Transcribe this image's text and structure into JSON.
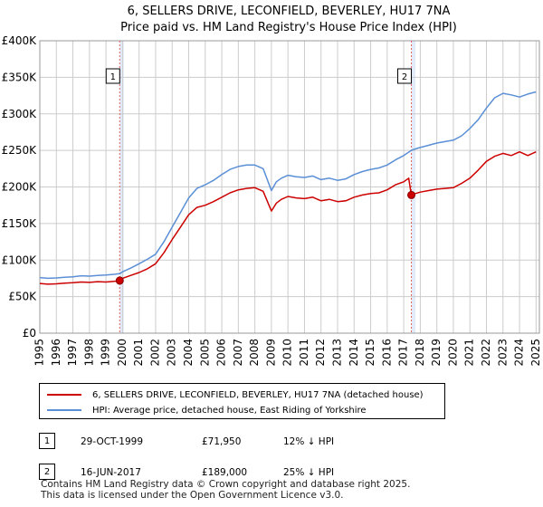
{
  "chart_data": {
    "type": "line",
    "title": "6, SELLERS DRIVE, LECONFIELD, BEVERLEY, HU17 7NA",
    "subtitle": "Price paid vs. HM Land Registry's House Price Index (HPI)",
    "x_range": [
      1995,
      2025.2
    ],
    "ylim": [
      0,
      400000
    ],
    "y_ticks": [
      0,
      50000,
      100000,
      150000,
      200000,
      250000,
      300000,
      350000,
      400000
    ],
    "y_tick_labels": [
      "£0",
      "£50K",
      "£100K",
      "£150K",
      "£200K",
      "£250K",
      "£300K",
      "£350K",
      "£400K"
    ],
    "x_ticks": [
      "1995",
      "1996",
      "1997",
      "1998",
      "1999",
      "2000",
      "2001",
      "2002",
      "2003",
      "2004",
      "2005",
      "2006",
      "2007",
      "2008",
      "2009",
      "2010",
      "2011",
      "2012",
      "2013",
      "2014",
      "2015",
      "2016",
      "2017",
      "2018",
      "2019",
      "2020",
      "2021",
      "2022",
      "2023",
      "2024",
      "2025"
    ],
    "grid": true,
    "colors": {
      "property": "#cc0000",
      "hpi": "#5b8fd6",
      "marker_line": "#e06060",
      "shade": "#dbe6f7"
    },
    "series": [
      {
        "name": "6, SELLERS DRIVE, LECONFIELD, BEVERLEY, HU17 7NA (detached house)",
        "x": [
          1995,
          1995.5,
          1996,
          1996.5,
          1997,
          1997.5,
          1998,
          1998.5,
          1999,
          1999.5,
          1999.83,
          2000,
          2000.5,
          2001,
          2001.5,
          2002,
          2002.5,
          2003,
          2003.5,
          2004,
          2004.5,
          2005,
          2005.5,
          2006,
          2006.5,
          2007,
          2007.5,
          2008,
          2008.5,
          2009,
          2009.3,
          2009.6,
          2010,
          2010.5,
          2011,
          2011.5,
          2012,
          2012.5,
          2013,
          2013.5,
          2014,
          2014.5,
          2015,
          2015.5,
          2016,
          2016.5,
          2017,
          2017.3,
          2017.46,
          2017.7,
          2018,
          2018.5,
          2019,
          2019.5,
          2020,
          2020.5,
          2021,
          2021.5,
          2022,
          2022.5,
          2023,
          2023.5,
          2024,
          2024.5,
          2025
        ],
        "values": [
          68000,
          67000,
          67500,
          68500,
          69000,
          70000,
          69500,
          70500,
          70000,
          71000,
          71950,
          75000,
          79000,
          83000,
          88000,
          95000,
          110000,
          128000,
          145000,
          162000,
          172000,
          175000,
          180000,
          186000,
          192000,
          196000,
          198000,
          199000,
          194000,
          167000,
          178000,
          183000,
          187000,
          185000,
          184000,
          186000,
          181000,
          183000,
          180000,
          181000,
          186000,
          189000,
          191000,
          192000,
          196000,
          203000,
          207000,
          212000,
          189000,
          191000,
          193000,
          195000,
          197000,
          198000,
          199000,
          205000,
          212000,
          223000,
          235000,
          242000,
          246000,
          243000,
          248000,
          243000,
          248000
        ]
      },
      {
        "name": "HPI: Average price, detached house, East Riding of Yorkshire",
        "x": [
          1995,
          1995.5,
          1996,
          1996.5,
          1997,
          1997.5,
          1998,
          1998.5,
          1999,
          1999.5,
          1999.83,
          2000,
          2000.5,
          2001,
          2001.5,
          2002,
          2002.5,
          2003,
          2003.5,
          2004,
          2004.5,
          2005,
          2005.5,
          2006,
          2006.5,
          2007,
          2007.5,
          2008,
          2008.5,
          2009,
          2009.3,
          2009.6,
          2010,
          2010.5,
          2011,
          2011.5,
          2012,
          2012.5,
          2013,
          2013.5,
          2014,
          2014.5,
          2015,
          2015.5,
          2016,
          2016.5,
          2017,
          2017.46,
          2017.7,
          2018,
          2018.5,
          2019,
          2019.5,
          2020,
          2020.5,
          2021,
          2021.5,
          2022,
          2022.5,
          2023,
          2023.5,
          2024,
          2024.5,
          2025
        ],
        "values": [
          76000,
          75000,
          75500,
          76500,
          77000,
          78500,
          78000,
          79000,
          79500,
          80500,
          81500,
          84000,
          89000,
          95000,
          101000,
          108000,
          125000,
          145000,
          165000,
          185000,
          198000,
          203000,
          209000,
          217000,
          224000,
          228000,
          230000,
          230000,
          225000,
          195000,
          207000,
          212000,
          216000,
          214000,
          213000,
          215000,
          210000,
          212000,
          209000,
          211000,
          217000,
          221000,
          224000,
          226000,
          230000,
          237000,
          243000,
          250000,
          252000,
          254000,
          257000,
          260000,
          262000,
          264000,
          270000,
          280000,
          292000,
          308000,
          322000,
          328000,
          326000,
          323000,
          327000,
          330000
        ]
      }
    ],
    "annotations": [
      {
        "label": "1",
        "x": 1999.83,
        "value": 71950
      },
      {
        "label": "2",
        "x": 2017.46,
        "value": 189000
      }
    ]
  },
  "legend": {
    "property_label": "6, SELLERS DRIVE, LECONFIELD, BEVERLEY, HU17 7NA (detached house)",
    "hpi_label": "HPI: Average price, detached house, East Riding of Yorkshire"
  },
  "sales": [
    {
      "marker": "1",
      "date": "29-OCT-1999",
      "price": "£71,950",
      "hpi": "12% ↓ HPI"
    },
    {
      "marker": "2",
      "date": "16-JUN-2017",
      "price": "£189,000",
      "hpi": "25% ↓ HPI"
    }
  ],
  "footer": {
    "line1": "Contains HM Land Registry data © Crown copyright and database right 2025.",
    "line2": "This data is licensed under the Open Government Licence v3.0."
  }
}
